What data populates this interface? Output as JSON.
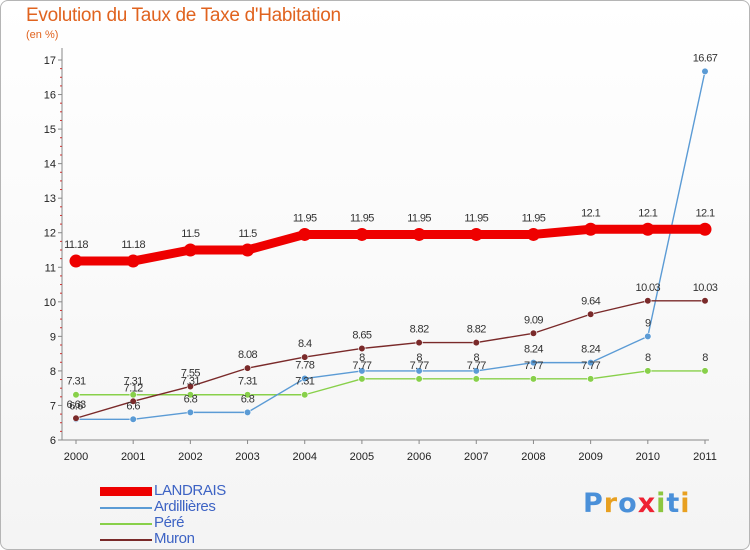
{
  "title": "Evolution du Taux de Taxe d'Habitation",
  "subtitle": "(en %)",
  "logo": "Proxiti",
  "chart_data": {
    "type": "line",
    "x": [
      "2000",
      "2001",
      "2002",
      "2003",
      "2004",
      "2005",
      "2006",
      "2007",
      "2008",
      "2009",
      "2010",
      "2011"
    ],
    "yticks": [
      "6",
      "7",
      "8",
      "9",
      "10",
      "11",
      "12",
      "13",
      "14",
      "15",
      "16",
      "17"
    ],
    "ylim": [
      6,
      17
    ],
    "grid": false,
    "legend_position": "bottom-left",
    "series": [
      {
        "name": "LANDRAIS",
        "color": "#ee0000",
        "values": [
          11.18,
          11.18,
          11.5,
          11.5,
          11.95,
          11.95,
          11.95,
          11.95,
          11.95,
          12.1,
          12.1,
          12.1
        ],
        "labels": [
          "11.18",
          "11.18",
          "11.5",
          "11.5",
          "11.95",
          "11.95",
          "11.95",
          "11.95",
          "11.95",
          "12.1",
          "12.1",
          "12.1"
        ]
      },
      {
        "name": "Ardillières",
        "color": "#5b9bd5",
        "values": [
          6.6,
          6.6,
          6.8,
          6.8,
          7.78,
          8,
          8,
          8,
          8.24,
          8.24,
          9,
          16.67
        ],
        "labels": [
          "6.6",
          "6.6",
          "6.8",
          "6.8",
          "7.78",
          "8",
          "8",
          "8",
          "8.24",
          "8.24",
          "9",
          "16.67"
        ]
      },
      {
        "name": "Péré",
        "color": "#88d04a",
        "values": [
          7.31,
          7.31,
          7.31,
          7.31,
          7.31,
          7.77,
          7.77,
          7.77,
          7.77,
          7.77,
          8,
          8
        ],
        "labels": [
          "7.31",
          "7.31",
          "7.31",
          "7.31",
          "7.31",
          "7.77",
          "7.77",
          "7.77",
          "7.77",
          "7.77",
          "8",
          "8"
        ]
      },
      {
        "name": "Muron",
        "color": "#7a2a2a",
        "values": [
          6.63,
          7.12,
          7.55,
          8.08,
          8.4,
          8.65,
          8.82,
          8.82,
          9.09,
          9.64,
          10.03,
          10.03
        ],
        "labels": [
          "6.63",
          "7.12",
          "7.55",
          "8.08",
          "8.4",
          "8.65",
          "8.82",
          "8.82",
          "9.09",
          "9.64",
          "10.03",
          "10.03"
        ]
      }
    ]
  }
}
